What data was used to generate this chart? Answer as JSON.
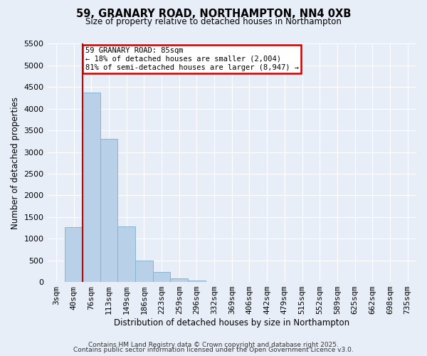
{
  "title": "59, GRANARY ROAD, NORTHAMPTON, NN4 0XB",
  "subtitle": "Size of property relative to detached houses in Northampton",
  "xlabel": "Distribution of detached houses by size in Northampton",
  "ylabel": "Number of detached properties",
  "bar_labels": [
    "3sqm",
    "40sqm",
    "76sqm",
    "113sqm",
    "149sqm",
    "186sqm",
    "223sqm",
    "259sqm",
    "296sqm",
    "332sqm",
    "369sqm",
    "406sqm",
    "442sqm",
    "479sqm",
    "515sqm",
    "552sqm",
    "589sqm",
    "625sqm",
    "662sqm",
    "698sqm",
    "735sqm"
  ],
  "bar_values": [
    0,
    1270,
    4370,
    3300,
    1280,
    500,
    230,
    90,
    30,
    5,
    0,
    0,
    0,
    0,
    0,
    0,
    0,
    0,
    0,
    0,
    0
  ],
  "bar_color": "#b8d0e8",
  "bar_edge_color": "#88b4d4",
  "vline_x_idx": 2,
  "vline_color": "#cc0000",
  "ylim": [
    0,
    5500
  ],
  "yticks": [
    0,
    500,
    1000,
    1500,
    2000,
    2500,
    3000,
    3500,
    4000,
    4500,
    5000,
    5500
  ],
  "annotation_title": "59 GRANARY ROAD: 85sqm",
  "annotation_line1": "← 18% of detached houses are smaller (2,004)",
  "annotation_line2": "81% of semi-detached houses are larger (8,947) →",
  "annotation_box_color": "#ffffff",
  "annotation_box_edge": "#cc0000",
  "bg_color": "#e8eef8",
  "grid_color": "#ffffff",
  "footer1": "Contains HM Land Registry data © Crown copyright and database right 2025.",
  "footer2": "Contains public sector information licensed under the Open Government Licence v3.0."
}
